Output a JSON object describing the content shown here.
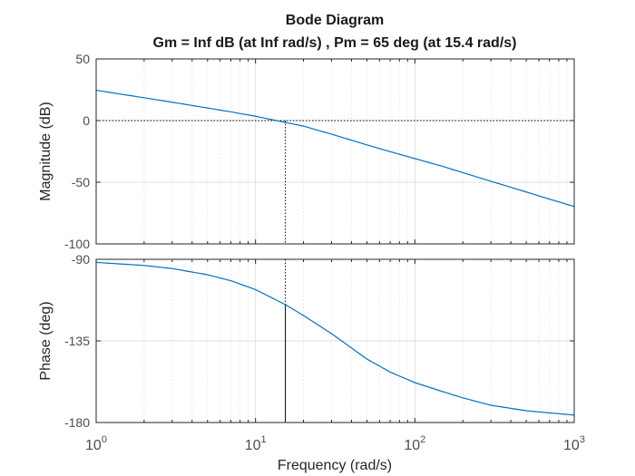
{
  "chart_data": {
    "type": "line",
    "title": "Bode Diagram",
    "subtitle": "Gm = Inf dB (at Inf rad/s) ,  Pm = 65 deg (at 15.4 rad/s)",
    "xlabel": "Frequency  (rad/s)",
    "xscale": "log",
    "xlim": [
      1,
      1000
    ],
    "x_ticks": [
      {
        "base": "10",
        "exp": "0"
      },
      {
        "base": "10",
        "exp": "1"
      },
      {
        "base": "10",
        "exp": "2"
      },
      {
        "base": "10",
        "exp": "3"
      }
    ],
    "grid": true,
    "line_color": "#0072BD",
    "panels": [
      {
        "name": "magnitude",
        "ylabel": "Magnitude (dB)",
        "ylim": [
          -100,
          50
        ],
        "yticks": [
          "50",
          "0",
          "-50",
          "-100"
        ],
        "series": [
          {
            "x": [
              1,
              2,
              3,
              5,
              7,
              10,
              15.4,
              20,
              30,
              50,
              70,
              100,
              150,
              200,
              300,
              500,
              700,
              1000
            ],
            "values": [
              24.6,
              18.5,
              14.9,
              10.2,
              7.1,
              3.5,
              -1.5,
              -4.5,
              -11,
              -19.7,
              -25.2,
              -30.8,
              -37.2,
              -42.2,
              -49.2,
              -57.9,
              -63.7,
              -69.7
            ]
          }
        ],
        "reference_line_y": 0
      },
      {
        "name": "phase",
        "ylabel": "Phase (deg)",
        "ylim": [
          -180,
          -90
        ],
        "yticks": [
          "-90",
          "-135",
          "-180"
        ],
        "series": [
          {
            "x": [
              1,
              2,
              3,
              5,
              7,
              10,
              15.4,
              20,
              30,
              50,
              70,
              100,
              150,
              200,
              300,
              500,
              700,
              1000
            ],
            "values": [
              -91.7,
              -93.4,
              -95.1,
              -98.5,
              -101.8,
              -106.7,
              -115,
              -121,
              -131,
              -145,
              -152.2,
              -158,
              -163,
              -166.4,
              -170.5,
              -173.5,
              -174.7,
              -175.9
            ]
          }
        ],
        "reference_line_y": -180
      }
    ],
    "phase_margin": {
      "frequency": 15.4,
      "phase_at_crossover": -115,
      "margin_deg": 65
    }
  }
}
